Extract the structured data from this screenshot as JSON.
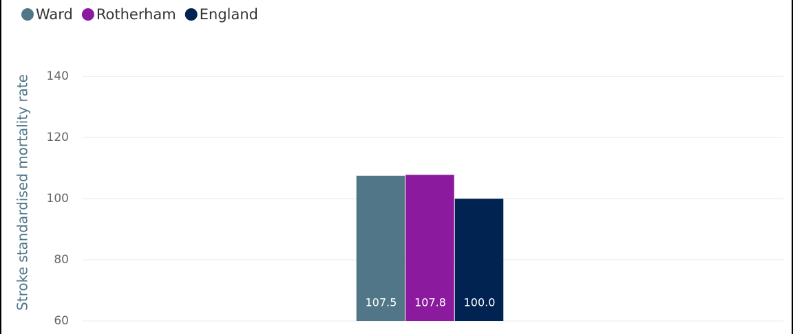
{
  "chart_data": {
    "type": "bar",
    "y_label": "Stroke standardised mortality rate",
    "categories": [
      null
    ],
    "series": [
      {
        "name": "Ward",
        "color": "#507687",
        "values": [
          107.5
        ],
        "value_labels": [
          "107.5"
        ]
      },
      {
        "name": "Rotherham",
        "color": "#8b1a9e",
        "values": [
          107.8
        ],
        "value_labels": [
          "107.8"
        ]
      },
      {
        "name": "England",
        "color": "#002352",
        "values": [
          100
        ],
        "value_labels": [
          "100.0"
        ]
      }
    ],
    "ylim": [
      60,
      145
    ],
    "yticks": [
      60,
      80,
      100,
      120,
      140
    ],
    "grid": true,
    "legend": "top-left"
  }
}
